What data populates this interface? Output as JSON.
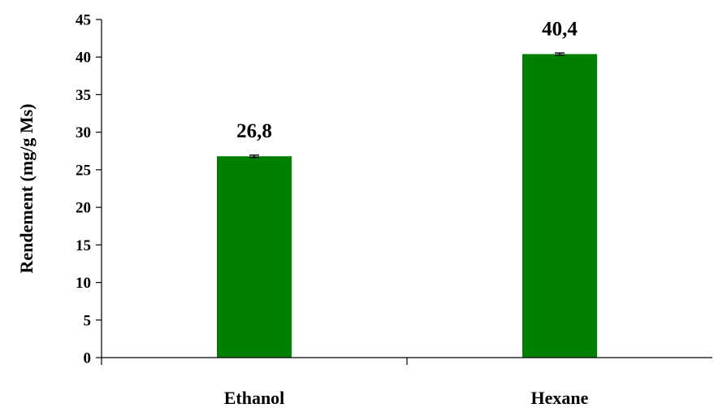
{
  "chart_data": {
    "type": "bar",
    "categories": [
      "Ethanol",
      "Hexane"
    ],
    "values": [
      26.8,
      40.4
    ],
    "data_labels": [
      "26,8",
      "40,4"
    ],
    "error": [
      0.15,
      0.15
    ],
    "ylabel": "Rendement (mg/g Ms)",
    "xlabel": "",
    "ylim": [
      0,
      45
    ],
    "yticks": [
      0,
      5,
      10,
      15,
      20,
      25,
      30,
      35,
      40,
      45
    ],
    "ytick_labels": [
      "0",
      "5",
      "10",
      "15",
      "20",
      "25",
      "30",
      "35",
      "40",
      "45"
    ],
    "grid": false,
    "legend": "none",
    "bar_color": "#008000"
  }
}
